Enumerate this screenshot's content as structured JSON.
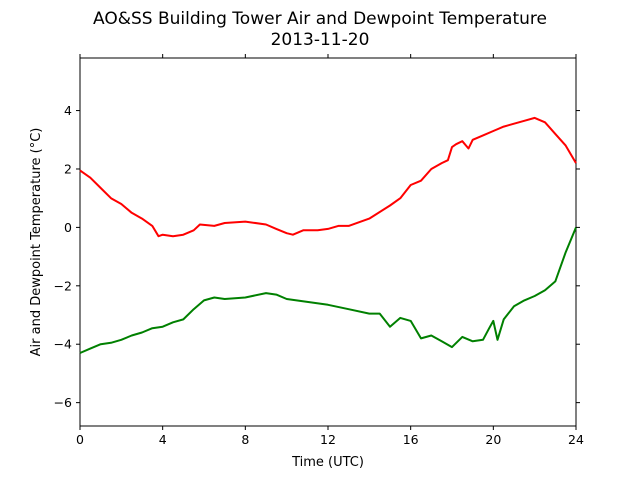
{
  "chart_data": {
    "type": "line",
    "title": "AO&SS Building Tower Air and Dewpoint Temperature",
    "subtitle": "2013-11-20",
    "xlabel": "Time (UTC)",
    "ylabel": "Air and Dewpoint Temperature (°C)",
    "xlim": [
      0,
      24
    ],
    "ylim": [
      -6.8,
      5.8
    ],
    "x_ticks": [
      0,
      4,
      8,
      12,
      16,
      20,
      24
    ],
    "y_ticks": [
      -6,
      -4,
      -2,
      0,
      2,
      4
    ],
    "x_tick_labels": [
      "0",
      "4",
      "8",
      "12",
      "16",
      "20",
      "24"
    ],
    "y_tick_labels": [
      "−6",
      "−4",
      "−2",
      "0",
      "2",
      "4"
    ],
    "grid": false,
    "legend": "none",
    "series": [
      {
        "color": "#ff0000",
        "x": [
          0,
          0.5,
          1,
          1.5,
          2,
          2.5,
          3,
          3.5,
          3.8,
          4,
          4.5,
          5,
          5.5,
          5.8,
          6.5,
          7,
          8,
          9,
          9.5,
          10,
          10.3,
          10.8,
          11.5,
          12,
          12.5,
          13,
          14,
          15,
          15.5,
          16,
          16.5,
          17,
          17.5,
          17.8,
          18,
          18.2,
          18.5,
          18.8,
          19,
          19.5,
          20,
          20.5,
          21,
          21.5,
          22,
          22.5,
          23,
          23.5,
          24
        ],
        "y": [
          1.95,
          1.7,
          1.35,
          1.0,
          0.8,
          0.5,
          0.3,
          0.05,
          -0.3,
          -0.25,
          -0.3,
          -0.25,
          -0.1,
          0.1,
          0.05,
          0.15,
          0.2,
          0.1,
          -0.05,
          -0.2,
          -0.25,
          -0.1,
          -0.1,
          -0.05,
          0.05,
          0.05,
          0.3,
          0.75,
          1.0,
          1.45,
          1.6,
          2.0,
          2.2,
          2.3,
          2.75,
          2.85,
          2.95,
          2.7,
          3.0,
          3.15,
          3.3,
          3.45,
          3.55,
          3.65,
          3.75,
          3.6,
          3.2,
          2.8,
          2.2
        ]
      },
      {
        "color": "#008000",
        "x": [
          0,
          0.5,
          1,
          1.5,
          2,
          2.5,
          3,
          3.5,
          4,
          4.5,
          5,
          5.5,
          6,
          6.5,
          7,
          8,
          9,
          9.5,
          10,
          11,
          12,
          13,
          14,
          14.5,
          15,
          15.5,
          16,
          16.5,
          17,
          17.5,
          18,
          18.5,
          19,
          19.5,
          19.8,
          20,
          20.2,
          20.5,
          21,
          21.5,
          22,
          22.5,
          23,
          23.5,
          24
        ],
        "y": [
          -4.3,
          -4.15,
          -4.0,
          -3.95,
          -3.85,
          -3.7,
          -3.6,
          -3.45,
          -3.4,
          -3.25,
          -3.15,
          -2.8,
          -2.5,
          -2.4,
          -2.45,
          -2.4,
          -2.25,
          -2.3,
          -2.45,
          -2.55,
          -2.65,
          -2.8,
          -2.95,
          -2.95,
          -3.4,
          -3.1,
          -3.2,
          -3.8,
          -3.7,
          -3.9,
          -4.1,
          -3.75,
          -3.9,
          -3.85,
          -3.45,
          -3.2,
          -3.85,
          -3.15,
          -2.7,
          -2.5,
          -2.35,
          -2.15,
          -1.85,
          -0.85,
          0.0
        ]
      }
    ]
  }
}
